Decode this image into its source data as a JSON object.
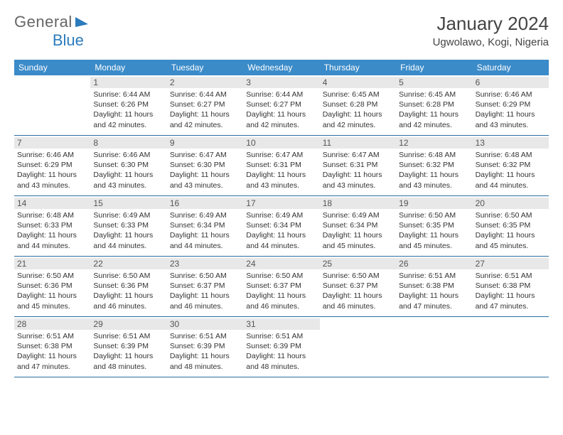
{
  "logo": {
    "part1": "General",
    "part2": "Blue"
  },
  "title": "January 2024",
  "location": "Ugwolawo, Kogi, Nigeria",
  "weekdays": [
    "Sunday",
    "Monday",
    "Tuesday",
    "Wednesday",
    "Thursday",
    "Friday",
    "Saturday"
  ],
  "colors": {
    "header_bg": "#3b8bc9",
    "header_text": "#ffffff",
    "row_border": "#2b6fa3",
    "daynum_bg": "#e8e8e8",
    "body_text": "#333333",
    "logo_blue": "#2b7bbd"
  },
  "weeks": [
    [
      null,
      {
        "n": "1",
        "sr": "Sunrise: 6:44 AM",
        "ss": "Sunset: 6:26 PM",
        "d1": "Daylight: 11 hours",
        "d2": "and 42 minutes."
      },
      {
        "n": "2",
        "sr": "Sunrise: 6:44 AM",
        "ss": "Sunset: 6:27 PM",
        "d1": "Daylight: 11 hours",
        "d2": "and 42 minutes."
      },
      {
        "n": "3",
        "sr": "Sunrise: 6:44 AM",
        "ss": "Sunset: 6:27 PM",
        "d1": "Daylight: 11 hours",
        "d2": "and 42 minutes."
      },
      {
        "n": "4",
        "sr": "Sunrise: 6:45 AM",
        "ss": "Sunset: 6:28 PM",
        "d1": "Daylight: 11 hours",
        "d2": "and 42 minutes."
      },
      {
        "n": "5",
        "sr": "Sunrise: 6:45 AM",
        "ss": "Sunset: 6:28 PM",
        "d1": "Daylight: 11 hours",
        "d2": "and 42 minutes."
      },
      {
        "n": "6",
        "sr": "Sunrise: 6:46 AM",
        "ss": "Sunset: 6:29 PM",
        "d1": "Daylight: 11 hours",
        "d2": "and 43 minutes."
      }
    ],
    [
      {
        "n": "7",
        "sr": "Sunrise: 6:46 AM",
        "ss": "Sunset: 6:29 PM",
        "d1": "Daylight: 11 hours",
        "d2": "and 43 minutes."
      },
      {
        "n": "8",
        "sr": "Sunrise: 6:46 AM",
        "ss": "Sunset: 6:30 PM",
        "d1": "Daylight: 11 hours",
        "d2": "and 43 minutes."
      },
      {
        "n": "9",
        "sr": "Sunrise: 6:47 AM",
        "ss": "Sunset: 6:30 PM",
        "d1": "Daylight: 11 hours",
        "d2": "and 43 minutes."
      },
      {
        "n": "10",
        "sr": "Sunrise: 6:47 AM",
        "ss": "Sunset: 6:31 PM",
        "d1": "Daylight: 11 hours",
        "d2": "and 43 minutes."
      },
      {
        "n": "11",
        "sr": "Sunrise: 6:47 AM",
        "ss": "Sunset: 6:31 PM",
        "d1": "Daylight: 11 hours",
        "d2": "and 43 minutes."
      },
      {
        "n": "12",
        "sr": "Sunrise: 6:48 AM",
        "ss": "Sunset: 6:32 PM",
        "d1": "Daylight: 11 hours",
        "d2": "and 43 minutes."
      },
      {
        "n": "13",
        "sr": "Sunrise: 6:48 AM",
        "ss": "Sunset: 6:32 PM",
        "d1": "Daylight: 11 hours",
        "d2": "and 44 minutes."
      }
    ],
    [
      {
        "n": "14",
        "sr": "Sunrise: 6:48 AM",
        "ss": "Sunset: 6:33 PM",
        "d1": "Daylight: 11 hours",
        "d2": "and 44 minutes."
      },
      {
        "n": "15",
        "sr": "Sunrise: 6:49 AM",
        "ss": "Sunset: 6:33 PM",
        "d1": "Daylight: 11 hours",
        "d2": "and 44 minutes."
      },
      {
        "n": "16",
        "sr": "Sunrise: 6:49 AM",
        "ss": "Sunset: 6:34 PM",
        "d1": "Daylight: 11 hours",
        "d2": "and 44 minutes."
      },
      {
        "n": "17",
        "sr": "Sunrise: 6:49 AM",
        "ss": "Sunset: 6:34 PM",
        "d1": "Daylight: 11 hours",
        "d2": "and 44 minutes."
      },
      {
        "n": "18",
        "sr": "Sunrise: 6:49 AM",
        "ss": "Sunset: 6:34 PM",
        "d1": "Daylight: 11 hours",
        "d2": "and 45 minutes."
      },
      {
        "n": "19",
        "sr": "Sunrise: 6:50 AM",
        "ss": "Sunset: 6:35 PM",
        "d1": "Daylight: 11 hours",
        "d2": "and 45 minutes."
      },
      {
        "n": "20",
        "sr": "Sunrise: 6:50 AM",
        "ss": "Sunset: 6:35 PM",
        "d1": "Daylight: 11 hours",
        "d2": "and 45 minutes."
      }
    ],
    [
      {
        "n": "21",
        "sr": "Sunrise: 6:50 AM",
        "ss": "Sunset: 6:36 PM",
        "d1": "Daylight: 11 hours",
        "d2": "and 45 minutes."
      },
      {
        "n": "22",
        "sr": "Sunrise: 6:50 AM",
        "ss": "Sunset: 6:36 PM",
        "d1": "Daylight: 11 hours",
        "d2": "and 46 minutes."
      },
      {
        "n": "23",
        "sr": "Sunrise: 6:50 AM",
        "ss": "Sunset: 6:37 PM",
        "d1": "Daylight: 11 hours",
        "d2": "and 46 minutes."
      },
      {
        "n": "24",
        "sr": "Sunrise: 6:50 AM",
        "ss": "Sunset: 6:37 PM",
        "d1": "Daylight: 11 hours",
        "d2": "and 46 minutes."
      },
      {
        "n": "25",
        "sr": "Sunrise: 6:50 AM",
        "ss": "Sunset: 6:37 PM",
        "d1": "Daylight: 11 hours",
        "d2": "and 46 minutes."
      },
      {
        "n": "26",
        "sr": "Sunrise: 6:51 AM",
        "ss": "Sunset: 6:38 PM",
        "d1": "Daylight: 11 hours",
        "d2": "and 47 minutes."
      },
      {
        "n": "27",
        "sr": "Sunrise: 6:51 AM",
        "ss": "Sunset: 6:38 PM",
        "d1": "Daylight: 11 hours",
        "d2": "and 47 minutes."
      }
    ],
    [
      {
        "n": "28",
        "sr": "Sunrise: 6:51 AM",
        "ss": "Sunset: 6:38 PM",
        "d1": "Daylight: 11 hours",
        "d2": "and 47 minutes."
      },
      {
        "n": "29",
        "sr": "Sunrise: 6:51 AM",
        "ss": "Sunset: 6:39 PM",
        "d1": "Daylight: 11 hours",
        "d2": "and 48 minutes."
      },
      {
        "n": "30",
        "sr": "Sunrise: 6:51 AM",
        "ss": "Sunset: 6:39 PM",
        "d1": "Daylight: 11 hours",
        "d2": "and 48 minutes."
      },
      {
        "n": "31",
        "sr": "Sunrise: 6:51 AM",
        "ss": "Sunset: 6:39 PM",
        "d1": "Daylight: 11 hours",
        "d2": "and 48 minutes."
      },
      null,
      null,
      null
    ]
  ]
}
